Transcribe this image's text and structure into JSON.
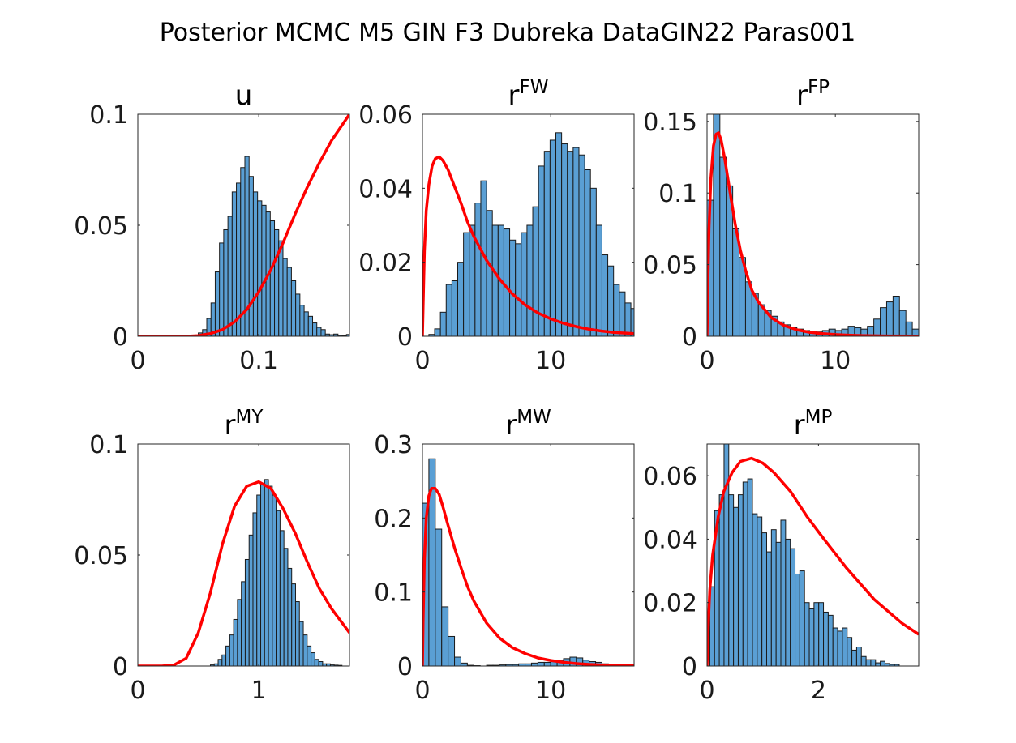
{
  "figure": {
    "title": "Posterior MCMC M5 GIN F3 Dubreka DataGIN22 Paras001",
    "colors": {
      "bar": "#5a9fd4",
      "curve": "#ff0000"
    }
  },
  "chart_data": [
    {
      "type": "bar",
      "title": "u",
      "title_sup": "",
      "xlim": [
        0,
        0.175
      ],
      "ylim": [
        0,
        0.1
      ],
      "xticks": [
        {
          "v": 0,
          "label": "0"
        },
        {
          "v": 0.1,
          "label": "0.1"
        }
      ],
      "yticks": [
        {
          "v": 0,
          "label": "0"
        },
        {
          "v": 0.05,
          "label": "0.05"
        },
        {
          "v": 0.1,
          "label": "0.1"
        }
      ],
      "bin_start": 0.05,
      "bin_width": 0.0035,
      "values": [
        0.0015,
        0.003,
        0.008,
        0.015,
        0.029,
        0.042,
        0.048,
        0.054,
        0.065,
        0.069,
        0.076,
        0.081,
        0.072,
        0.065,
        0.061,
        0.059,
        0.056,
        0.052,
        0.048,
        0.043,
        0.035,
        0.031,
        0.025,
        0.019,
        0.014,
        0.011,
        0.009,
        0.006,
        0.004,
        0.003,
        0.001,
        0.0007,
        0.001,
        0.0004,
        0.0003,
        0.0008,
        0.0003
      ],
      "curve_x": [
        0,
        0.02,
        0.04,
        0.05,
        0.06,
        0.07,
        0.08,
        0.09,
        0.1,
        0.11,
        0.12,
        0.13,
        0.14,
        0.15,
        0.16,
        0.17,
        0.175
      ],
      "curve_y": [
        0,
        0,
        0,
        0.0003,
        0.0012,
        0.003,
        0.0065,
        0.012,
        0.02,
        0.03,
        0.042,
        0.055,
        0.067,
        0.078,
        0.088,
        0.096,
        0.1
      ]
    },
    {
      "type": "bar",
      "title": "r",
      "title_sup": "FW",
      "xlim": [
        0,
        16.5
      ],
      "ylim": [
        0,
        0.06
      ],
      "xticks": [
        {
          "v": 0,
          "label": "0"
        },
        {
          "v": 10,
          "label": "10"
        }
      ],
      "yticks": [
        {
          "v": 0,
          "label": "0"
        },
        {
          "v": 0.02,
          "label": "0.02"
        },
        {
          "v": 0.04,
          "label": "0.04"
        },
        {
          "v": 0.06,
          "label": "0.06"
        }
      ],
      "bin_start": 0.5,
      "bin_width": 0.45,
      "values": [
        0.0005,
        0.002,
        0.0065,
        0.014,
        0.015,
        0.02,
        0.028,
        0.03,
        0.036,
        0.042,
        0.034,
        0.03,
        0.03,
        0.029,
        0.026,
        0.025,
        0.028,
        0.03,
        0.035,
        0.046,
        0.05,
        0.053,
        0.055,
        0.052,
        0.05,
        0.051,
        0.049,
        0.045,
        0.04,
        0.03,
        0.022,
        0.019,
        0.014,
        0.012,
        0.009,
        0.0075,
        0.007,
        0.006,
        0.005,
        0.003,
        0.002,
        0.0015,
        0.001,
        0.0008,
        0.0005
      ],
      "curve_x": [
        0,
        0.05,
        0.15,
        0.3,
        0.5,
        0.75,
        1,
        1.3,
        1.6,
        2,
        2.5,
        3,
        3.5,
        4,
        5,
        6,
        7,
        8,
        9,
        10,
        11,
        12,
        13,
        14,
        15,
        16,
        16.5
      ],
      "curve_y": [
        0,
        0.008,
        0.023,
        0.034,
        0.041,
        0.046,
        0.048,
        0.0485,
        0.0475,
        0.045,
        0.0405,
        0.036,
        0.031,
        0.027,
        0.0205,
        0.0155,
        0.0115,
        0.0085,
        0.0063,
        0.0047,
        0.0035,
        0.0026,
        0.0019,
        0.0014,
        0.001,
        0.0008,
        0.0007
      ]
    },
    {
      "type": "bar",
      "title": "r",
      "title_sup": "FP",
      "xlim": [
        0,
        16.5
      ],
      "ylim": [
        0,
        0.155
      ],
      "xticks": [
        {
          "v": 0,
          "label": "0"
        },
        {
          "v": 10,
          "label": "10"
        }
      ],
      "yticks": [
        {
          "v": 0,
          "label": "0"
        },
        {
          "v": 0.05,
          "label": "0.05"
        },
        {
          "v": 0.1,
          "label": "0.1"
        },
        {
          "v": 0.15,
          "label": "0.15"
        }
      ],
      "bin_start": 0,
      "bin_width": 0.5,
      "values": [
        0.095,
        0.155,
        0.125,
        0.105,
        0.075,
        0.055,
        0.038,
        0.03,
        0.022,
        0.018,
        0.014,
        0.01,
        0.008,
        0.006,
        0.005,
        0.004,
        0.003,
        0.003,
        0.004,
        0.005,
        0.004,
        0.005,
        0.007,
        0.006,
        0.005,
        0.007,
        0.012,
        0.02,
        0.024,
        0.028,
        0.018,
        0.01,
        0.005,
        0.003
      ],
      "curve_x": [
        0,
        0.05,
        0.15,
        0.3,
        0.5,
        0.7,
        0.9,
        1.1,
        1.4,
        1.8,
        2.2,
        2.6,
        3,
        3.5,
        4,
        5,
        6,
        7,
        8,
        9,
        10,
        11,
        12,
        14,
        16.5
      ],
      "curve_y": [
        0,
        0.03,
        0.075,
        0.11,
        0.133,
        0.141,
        0.142,
        0.137,
        0.123,
        0.1,
        0.078,
        0.06,
        0.046,
        0.032,
        0.024,
        0.013,
        0.0075,
        0.0045,
        0.0028,
        0.0018,
        0.0012,
        0.0008,
        0.0005,
        0.0002,
        0.0001
      ]
    },
    {
      "type": "bar",
      "title": "r",
      "title_sup": "MY",
      "xlim": [
        0,
        1.75
      ],
      "ylim": [
        0,
        0.1
      ],
      "xticks": [
        {
          "v": 0,
          "label": "0"
        },
        {
          "v": 1,
          "label": "1"
        }
      ],
      "yticks": [
        {
          "v": 0,
          "label": "0"
        },
        {
          "v": 0.05,
          "label": "0.05"
        },
        {
          "v": 0.1,
          "label": "0.1"
        }
      ],
      "bin_start": 0.6,
      "bin_width": 0.032,
      "values": [
        0.0005,
        0.001,
        0.003,
        0.005,
        0.009,
        0.014,
        0.021,
        0.03,
        0.038,
        0.048,
        0.059,
        0.069,
        0.077,
        0.082,
        0.084,
        0.081,
        0.077,
        0.07,
        0.061,
        0.053,
        0.044,
        0.037,
        0.029,
        0.02,
        0.014,
        0.009,
        0.006,
        0.003,
        0.002,
        0.001,
        0.001,
        0.0005,
        0.0004,
        0.0003
      ],
      "curve_x": [
        0,
        0.2,
        0.3,
        0.4,
        0.5,
        0.6,
        0.7,
        0.8,
        0.9,
        1,
        1.1,
        1.2,
        1.3,
        1.4,
        1.5,
        1.6,
        1.75
      ],
      "curve_y": [
        0,
        0,
        0.0005,
        0.0035,
        0.015,
        0.033,
        0.055,
        0.072,
        0.081,
        0.083,
        0.08,
        0.071,
        0.06,
        0.047,
        0.035,
        0.026,
        0.015
      ]
    },
    {
      "type": "bar",
      "title": "r",
      "title_sup": "MW",
      "xlim": [
        0,
        16.5
      ],
      "ylim": [
        0,
        0.3
      ],
      "xticks": [
        {
          "v": 0,
          "label": "0"
        },
        {
          "v": 10,
          "label": "10"
        }
      ],
      "yticks": [
        {
          "v": 0,
          "label": "0"
        },
        {
          "v": 0.1,
          "label": "0.1"
        },
        {
          "v": 0.2,
          "label": "0.2"
        },
        {
          "v": 0.3,
          "label": "0.3"
        }
      ],
      "bin_start": 0,
      "bin_width": 0.5,
      "values": [
        0.22,
        0.28,
        0.185,
        0.08,
        0.04,
        0.012,
        0.004,
        0.001,
        0.0005,
        0,
        0.001,
        0.001,
        0.0015,
        0.002,
        0.002,
        0.003,
        0.003,
        0.004,
        0.005,
        0.005,
        0.007,
        0.007,
        0.01,
        0.012,
        0.011,
        0.008,
        0.006,
        0.005,
        0.003,
        0.002,
        0.001,
        0.001
      ],
      "curve_x": [
        0,
        0.05,
        0.15,
        0.3,
        0.5,
        0.7,
        1,
        1.3,
        1.6,
        2,
        2.5,
        3,
        3.5,
        4,
        5,
        6,
        7,
        8,
        9,
        10,
        11,
        12,
        13,
        14,
        16.5
      ],
      "curve_y": [
        0,
        0.06,
        0.145,
        0.2,
        0.23,
        0.24,
        0.24,
        0.232,
        0.215,
        0.19,
        0.16,
        0.133,
        0.108,
        0.088,
        0.058,
        0.038,
        0.025,
        0.017,
        0.011,
        0.0075,
        0.005,
        0.0033,
        0.0022,
        0.0015,
        0.0005
      ]
    },
    {
      "type": "bar",
      "title": "r",
      "title_sup": "MP",
      "xlim": [
        0,
        3.8
      ],
      "ylim": [
        0,
        0.07
      ],
      "xticks": [
        {
          "v": 0,
          "label": "0"
        },
        {
          "v": 2,
          "label": "2"
        }
      ],
      "yticks": [
        {
          "v": 0,
          "label": "0"
        },
        {
          "v": 0.02,
          "label": "0.02"
        },
        {
          "v": 0.04,
          "label": "0.04"
        },
        {
          "v": 0.06,
          "label": "0.06"
        }
      ],
      "bin_start": 0.05,
      "bin_width": 0.085,
      "values": [
        0.025,
        0.049,
        0.054,
        0.07,
        0.054,
        0.05,
        0.054,
        0.058,
        0.059,
        0.048,
        0.047,
        0.042,
        0.036,
        0.043,
        0.039,
        0.046,
        0.04,
        0.037,
        0.029,
        0.03,
        0.02,
        0.018,
        0.02,
        0.02,
        0.017,
        0.016,
        0.012,
        0.011,
        0.012,
        0.009,
        0.005,
        0.006,
        0.003,
        0.002,
        0.002,
        0.001,
        0.0015,
        0.0008,
        0.0005,
        0.0005
      ],
      "curve_x": [
        0,
        0.02,
        0.05,
        0.1,
        0.2,
        0.3,
        0.45,
        0.6,
        0.8,
        1,
        1.2,
        1.5,
        1.8,
        2.1,
        2.5,
        3,
        3.5,
        3.8
      ],
      "curve_y": [
        0,
        0.012,
        0.024,
        0.035,
        0.047,
        0.055,
        0.061,
        0.0645,
        0.0655,
        0.064,
        0.061,
        0.055,
        0.047,
        0.04,
        0.031,
        0.021,
        0.0135,
        0.01
      ]
    }
  ]
}
